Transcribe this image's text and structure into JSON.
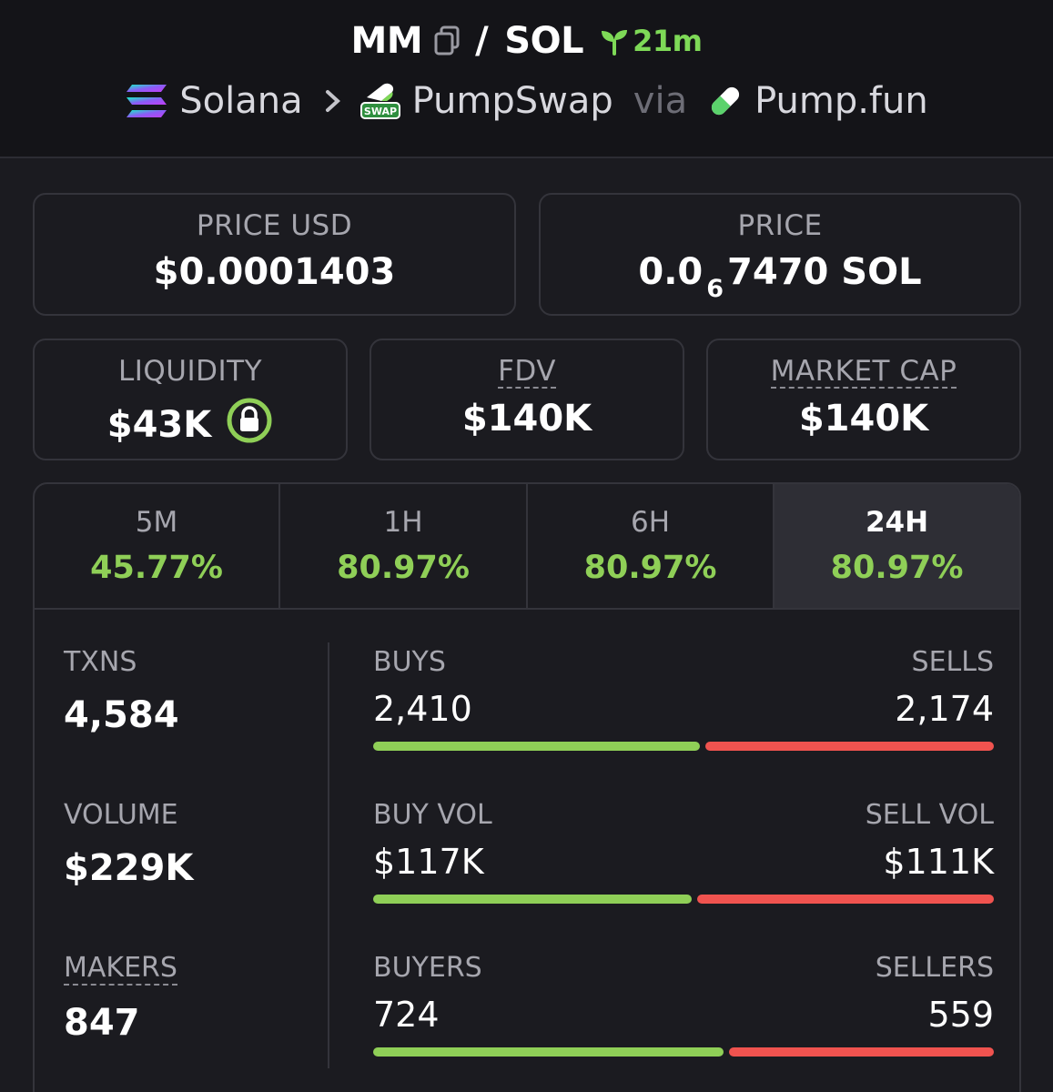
{
  "header": {
    "token_symbol": "MM",
    "slash": "/",
    "quote_symbol": "SOL",
    "age": "21m",
    "chain": "Solana",
    "dex": "PumpSwap",
    "via": "via",
    "launchpad": "Pump.fun",
    "dex_logo_text": "SWAP"
  },
  "price_usd": {
    "label": "PRICE USD",
    "value": "$0.0001403"
  },
  "price": {
    "label": "PRICE",
    "prefix": "0.0",
    "zeros": "6",
    "suffix": "7470 SOL"
  },
  "liquidity": {
    "label": "LIQUIDITY",
    "value": "$43K"
  },
  "fdv": {
    "label": "FDV",
    "value": "$140K"
  },
  "market_cap": {
    "label": "MARKET CAP",
    "value": "$140K"
  },
  "tabs": [
    {
      "label": "5M",
      "value": "45.77%"
    },
    {
      "label": "1H",
      "value": "80.97%"
    },
    {
      "label": "6H",
      "value": "80.97%"
    },
    {
      "label": "24H",
      "value": "80.97%",
      "active": true
    }
  ],
  "stats": {
    "txns": {
      "label": "TXNS",
      "value": "4,584"
    },
    "volume": {
      "label": "VOLUME",
      "value": "$229K"
    },
    "makers": {
      "label": "MAKERS",
      "value": "847"
    },
    "buys": {
      "label": "BUYS",
      "value": "2,410",
      "sell_label": "SELLS",
      "sell_value": "2,174",
      "buy_fraction": 0.526
    },
    "buy_vol": {
      "label": "BUY VOL",
      "value": "$117K",
      "sell_label": "SELL VOL",
      "sell_value": "$111K",
      "buy_fraction": 0.513
    },
    "buyers": {
      "label": "BUYERS",
      "value": "724",
      "sell_label": "SELLERS",
      "sell_value": "559",
      "buy_fraction": 0.564
    }
  },
  "colors": {
    "positive": "#8fcf57",
    "negative": "#f0534f",
    "age_green": "#7ed957"
  }
}
